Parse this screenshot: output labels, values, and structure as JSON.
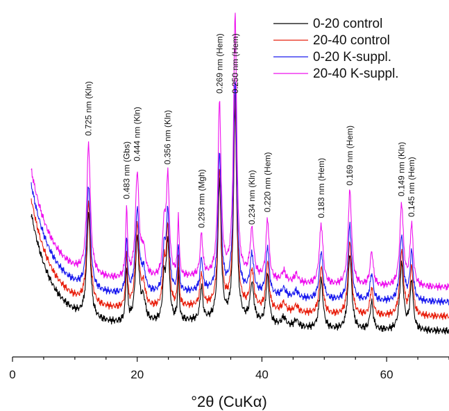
{
  "chart_data": {
    "type": "line",
    "title": "",
    "xlabel": "°2θ (CuKα)",
    "ylabel": "",
    "xlim": [
      0,
      70
    ],
    "x_ticks": [
      0,
      20,
      40,
      60
    ],
    "y_axis_visible": false,
    "grid": false,
    "legend_position": "top-right",
    "series": [
      {
        "name": "0-20 control",
        "color": "#000000",
        "offset": 0
      },
      {
        "name": "20-40 control",
        "color": "#e8210f",
        "offset": 1
      },
      {
        "name": "0-20 K-suppl.",
        "color": "#1a1aee",
        "offset": 2
      },
      {
        "name": "20-40 K-suppl.",
        "color": "#ee11ee",
        "offset": 3
      }
    ],
    "peaks": [
      {
        "x": 12.2,
        "label": "0.725 nm (Kln)"
      },
      {
        "x": 18.3,
        "label": "0.483 nm (Gbs)"
      },
      {
        "x": 20.0,
        "label": "0.444 nm (Kln)"
      },
      {
        "x": 24.9,
        "label": "0.356 nm (Kln)"
      },
      {
        "x": 30.3,
        "label": "0.293 nm (Mgh)"
      },
      {
        "x": 33.2,
        "label": "0.269 nm (Hem)"
      },
      {
        "x": 35.7,
        "label": "0.250 nm (Hem)"
      },
      {
        "x": 38.4,
        "label": "0.234 nm (Kln)"
      },
      {
        "x": 40.9,
        "label": "0.220 nm (Hem)"
      },
      {
        "x": 49.5,
        "label": "0.183 nm (Hem)"
      },
      {
        "x": 54.1,
        "label": "0.169 nm (Hem)"
      },
      {
        "x": 62.4,
        "label": "0.149 nm (Kln)"
      },
      {
        "x": 64.0,
        "label": "0.145 nm (Hem)"
      }
    ]
  }
}
